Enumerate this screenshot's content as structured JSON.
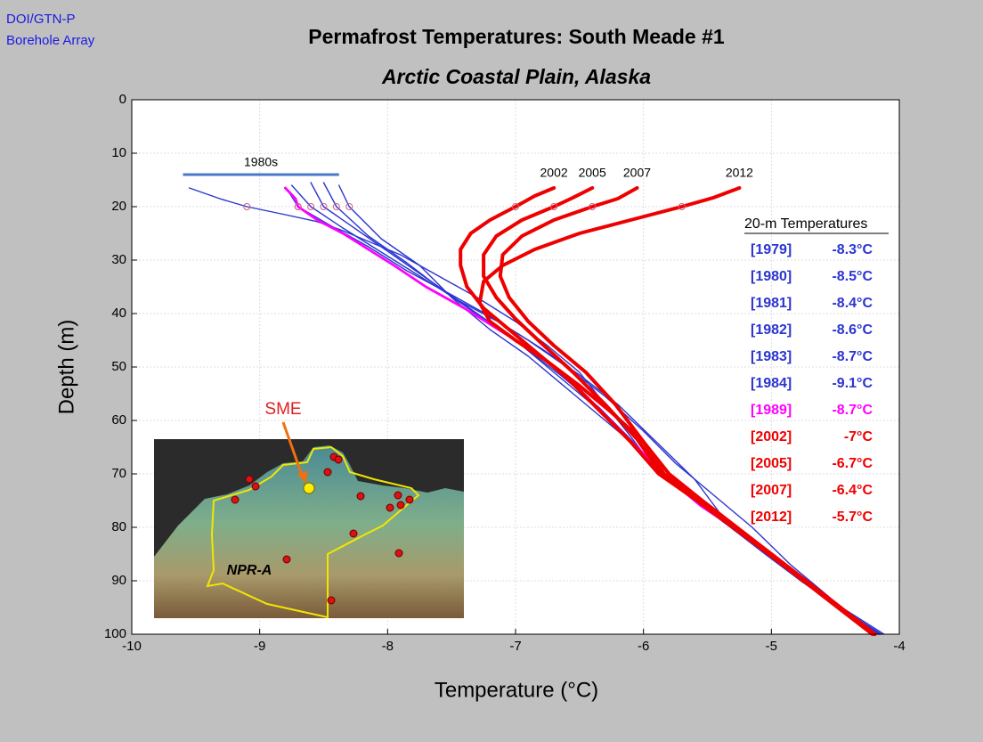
{
  "header": {
    "line1": "DOI/GTN-P",
    "line2": "Borehole Array"
  },
  "chart_data": {
    "type": "line",
    "title": "Permafrost Temperatures:  South Meade #1",
    "subtitle": "Arctic Coastal Plain, Alaska",
    "xlabel": "Temperature (°C)",
    "ylabel": "Depth (m)",
    "xlim": [
      -10,
      -4
    ],
    "ylim": [
      0,
      100
    ],
    "y_inverted": true,
    "xticks": [
      -10,
      -9,
      -8,
      -7,
      -6,
      -5,
      -4
    ],
    "yticks": [
      0,
      10,
      20,
      30,
      40,
      50,
      60,
      70,
      80,
      90,
      100
    ],
    "grid": true,
    "legend_title": "20-m Temperatures",
    "marker_depth": 20,
    "bracket": {
      "label": "1980s",
      "x": [
        -9.6,
        -8.38
      ],
      "y": 14,
      "color": "#4a78c8"
    },
    "series": [
      {
        "name": "[1979]",
        "color": "#2b35d0",
        "width": 1.4,
        "t20": -8.3,
        "t20_label": "-8.3°C",
        "x": [
          -8.38,
          -8.3,
          -8.05,
          -7.75,
          -7.5,
          -7.2,
          -6.9,
          -6.6,
          -6.3,
          -6.05,
          -5.85,
          -5.57,
          -5.3,
          -5.02,
          -4.75,
          -4.45,
          -4.12
        ],
        "y": [
          16,
          20,
          26,
          31,
          37,
          43,
          48,
          54,
          60,
          65,
          70,
          75,
          80,
          85,
          90,
          95,
          100
        ]
      },
      {
        "name": "[1980]",
        "color": "#2b35d0",
        "width": 1.4,
        "t20": -8.5,
        "t20_label": "-8.5°C",
        "x": [
          -8.6,
          -8.5,
          -8.2,
          -7.9,
          -7.6,
          -7.3,
          -7.0,
          -6.7,
          -6.4,
          -6.1,
          -5.88,
          -5.6,
          -5.32,
          -5.04,
          -4.77,
          -4.47,
          -4.16
        ],
        "y": [
          15.5,
          20,
          25,
          30,
          35,
          40,
          45,
          51,
          57,
          64,
          70,
          75,
          80,
          85,
          90,
          95,
          100
        ]
      },
      {
        "name": "[1981]",
        "color": "#2b35d0",
        "width": 1.4,
        "t20": -8.4,
        "t20_label": "-8.4°C",
        "x": [
          -8.5,
          -8.4,
          -8.15,
          -7.85,
          -7.55,
          -7.25,
          -6.95,
          -6.65,
          -6.35,
          -6.08,
          -5.87,
          -5.58,
          -5.31,
          -5.03,
          -4.76,
          -4.46,
          -4.15
        ],
        "y": [
          15.5,
          20,
          25.5,
          30.5,
          36,
          41,
          46,
          51.5,
          57.5,
          64,
          70,
          75,
          80,
          85,
          90,
          95,
          100
        ]
      },
      {
        "name": "[1982]",
        "color": "#2b35d0",
        "width": 1.4,
        "t20": -8.6,
        "t20_label": "-8.6°C",
        "x": [
          -8.75,
          -8.6,
          -8.35,
          -8.05,
          -7.75,
          -7.45,
          -7.1,
          -6.8,
          -6.5,
          -6.2,
          -5.9,
          -5.6,
          -5.32,
          -5.04,
          -4.77,
          -4.47,
          -4.16
        ],
        "y": [
          16,
          20,
          24,
          28.5,
          33,
          37.5,
          42,
          46.5,
          51.5,
          57,
          64,
          71,
          80,
          85,
          90,
          95,
          100
        ]
      },
      {
        "name": "[1983]",
        "color": "#2b35d0",
        "width": 1.4,
        "t20": -8.7,
        "t20_label": "-8.7°C",
        "x": [
          -8.78,
          -8.7,
          -8.45,
          -8.15,
          -7.85,
          -7.5,
          -7.2,
          -6.9,
          -6.6,
          -6.3,
          -6.0,
          -5.75,
          -5.45,
          -5.15,
          -4.85,
          -4.5,
          -4.18
        ],
        "y": [
          17,
          20,
          23.5,
          27.5,
          32,
          36.5,
          40.5,
          45,
          50,
          55.5,
          62,
          68,
          74,
          80,
          87,
          94,
          100
        ]
      },
      {
        "name": "[1984]",
        "color": "#2b35d0",
        "width": 1.4,
        "t20": -9.1,
        "t20_label": "-9.1°C",
        "x": [
          -9.55,
          -9.3,
          -9.1,
          -8.8,
          -8.55,
          -8.35,
          -8.15,
          -7.9,
          -7.6,
          -7.3,
          -7.0,
          -6.75,
          -6.5,
          -6.3,
          -6.1,
          -5.88,
          -5.6,
          -5.32,
          -5.05,
          -4.77,
          -4.47,
          -4.14
        ],
        "y": [
          16.5,
          18.6,
          20,
          21.5,
          22.8,
          24.5,
          26.5,
          29,
          33,
          37,
          41.5,
          46,
          51,
          57,
          63,
          70,
          75,
          80,
          85,
          90,
          95,
          100
        ]
      },
      {
        "name": "[1989]",
        "color": "#ff00ff",
        "width": 2.8,
        "t20": -8.7,
        "t20_label": "-8.7°C",
        "x": [
          -8.8,
          -8.72,
          -8.7,
          -8.55,
          -8.35,
          -8.15,
          -7.95,
          -7.7,
          -7.4,
          -7.1,
          -6.8,
          -6.55,
          -6.3,
          -6.05,
          -5.8,
          -5.55,
          -5.3
        ],
        "y": [
          16.5,
          18.5,
          20,
          22.5,
          25,
          28,
          31,
          35,
          39,
          43.5,
          48,
          53,
          59,
          65,
          71,
          76,
          80
        ]
      },
      {
        "name": "[2002]",
        "tag": "2002",
        "color": "#ee0000",
        "width": 4,
        "t20": -7,
        "t20_label": "-7°C",
        "x": [
          -6.7,
          -6.85,
          -7.0,
          -7.2,
          -7.35,
          -7.43,
          -7.43,
          -7.38,
          -7.25,
          -7.05,
          -6.85,
          -6.6,
          -6.35,
          -6.1,
          -5.88,
          -5.58,
          -5.3,
          -5.02,
          -4.75,
          -4.48,
          -4.21
        ],
        "y": [
          16.5,
          18,
          20,
          22.5,
          25,
          28,
          31,
          35,
          39,
          43,
          47,
          52,
          58,
          64,
          70,
          75,
          80,
          85,
          90,
          95,
          100
        ]
      },
      {
        "name": "[2005]",
        "tag": "2005",
        "color": "#ee0000",
        "width": 4,
        "t20": -6.7,
        "t20_label": "-6.7°C",
        "x": [
          -6.4,
          -6.55,
          -6.7,
          -6.95,
          -7.15,
          -7.25,
          -7.25,
          -7.15,
          -7.0,
          -6.8,
          -6.55,
          -6.3,
          -6.05,
          -5.86,
          -5.57,
          -5.29,
          -5.01,
          -4.74,
          -4.47,
          -4.2
        ],
        "y": [
          16.5,
          18.3,
          20,
          22.5,
          25.5,
          29,
          33,
          37,
          41,
          45.5,
          51,
          57,
          63.5,
          70,
          75,
          80,
          85,
          90,
          95,
          100
        ]
      },
      {
        "name": "[2007]",
        "tag": "2007",
        "color": "#ee0000",
        "width": 4,
        "t20": -6.4,
        "t20_label": "-6.4°C",
        "x": [
          -6.05,
          -6.2,
          -6.4,
          -6.7,
          -6.95,
          -7.1,
          -7.12,
          -7.05,
          -6.9,
          -6.7,
          -6.45,
          -6.22,
          -6.0,
          -5.84,
          -5.56,
          -5.28,
          -5.0,
          -4.73,
          -4.46,
          -4.2
        ],
        "y": [
          16.5,
          18.5,
          20,
          22.5,
          25.5,
          29,
          33,
          37,
          41.5,
          46,
          51,
          57,
          64,
          70,
          75,
          80,
          85,
          90,
          95,
          100
        ]
      },
      {
        "name": "[2012]",
        "tag": "2012",
        "color": "#ee0000",
        "width": 4,
        "t20": -5.7,
        "t20_label": "-5.7°C",
        "x": [
          -5.25,
          -5.45,
          -5.7,
          -6.1,
          -6.5,
          -6.85,
          -7.1,
          -7.25,
          -7.28,
          -7.2,
          -7.0,
          -6.75,
          -6.5,
          -6.25,
          -6.0,
          -5.8,
          -5.54,
          -5.27,
          -5.0,
          -4.73,
          -4.46,
          -4.19
        ],
        "y": [
          16.5,
          18.3,
          20,
          22.5,
          25,
          28,
          31,
          34,
          38,
          41.5,
          45,
          49,
          53.5,
          58.5,
          64,
          70,
          75,
          80,
          85,
          90,
          95,
          100
        ]
      }
    ],
    "inset": {
      "site_label": "SME",
      "region_label": "NPR-A"
    }
  }
}
